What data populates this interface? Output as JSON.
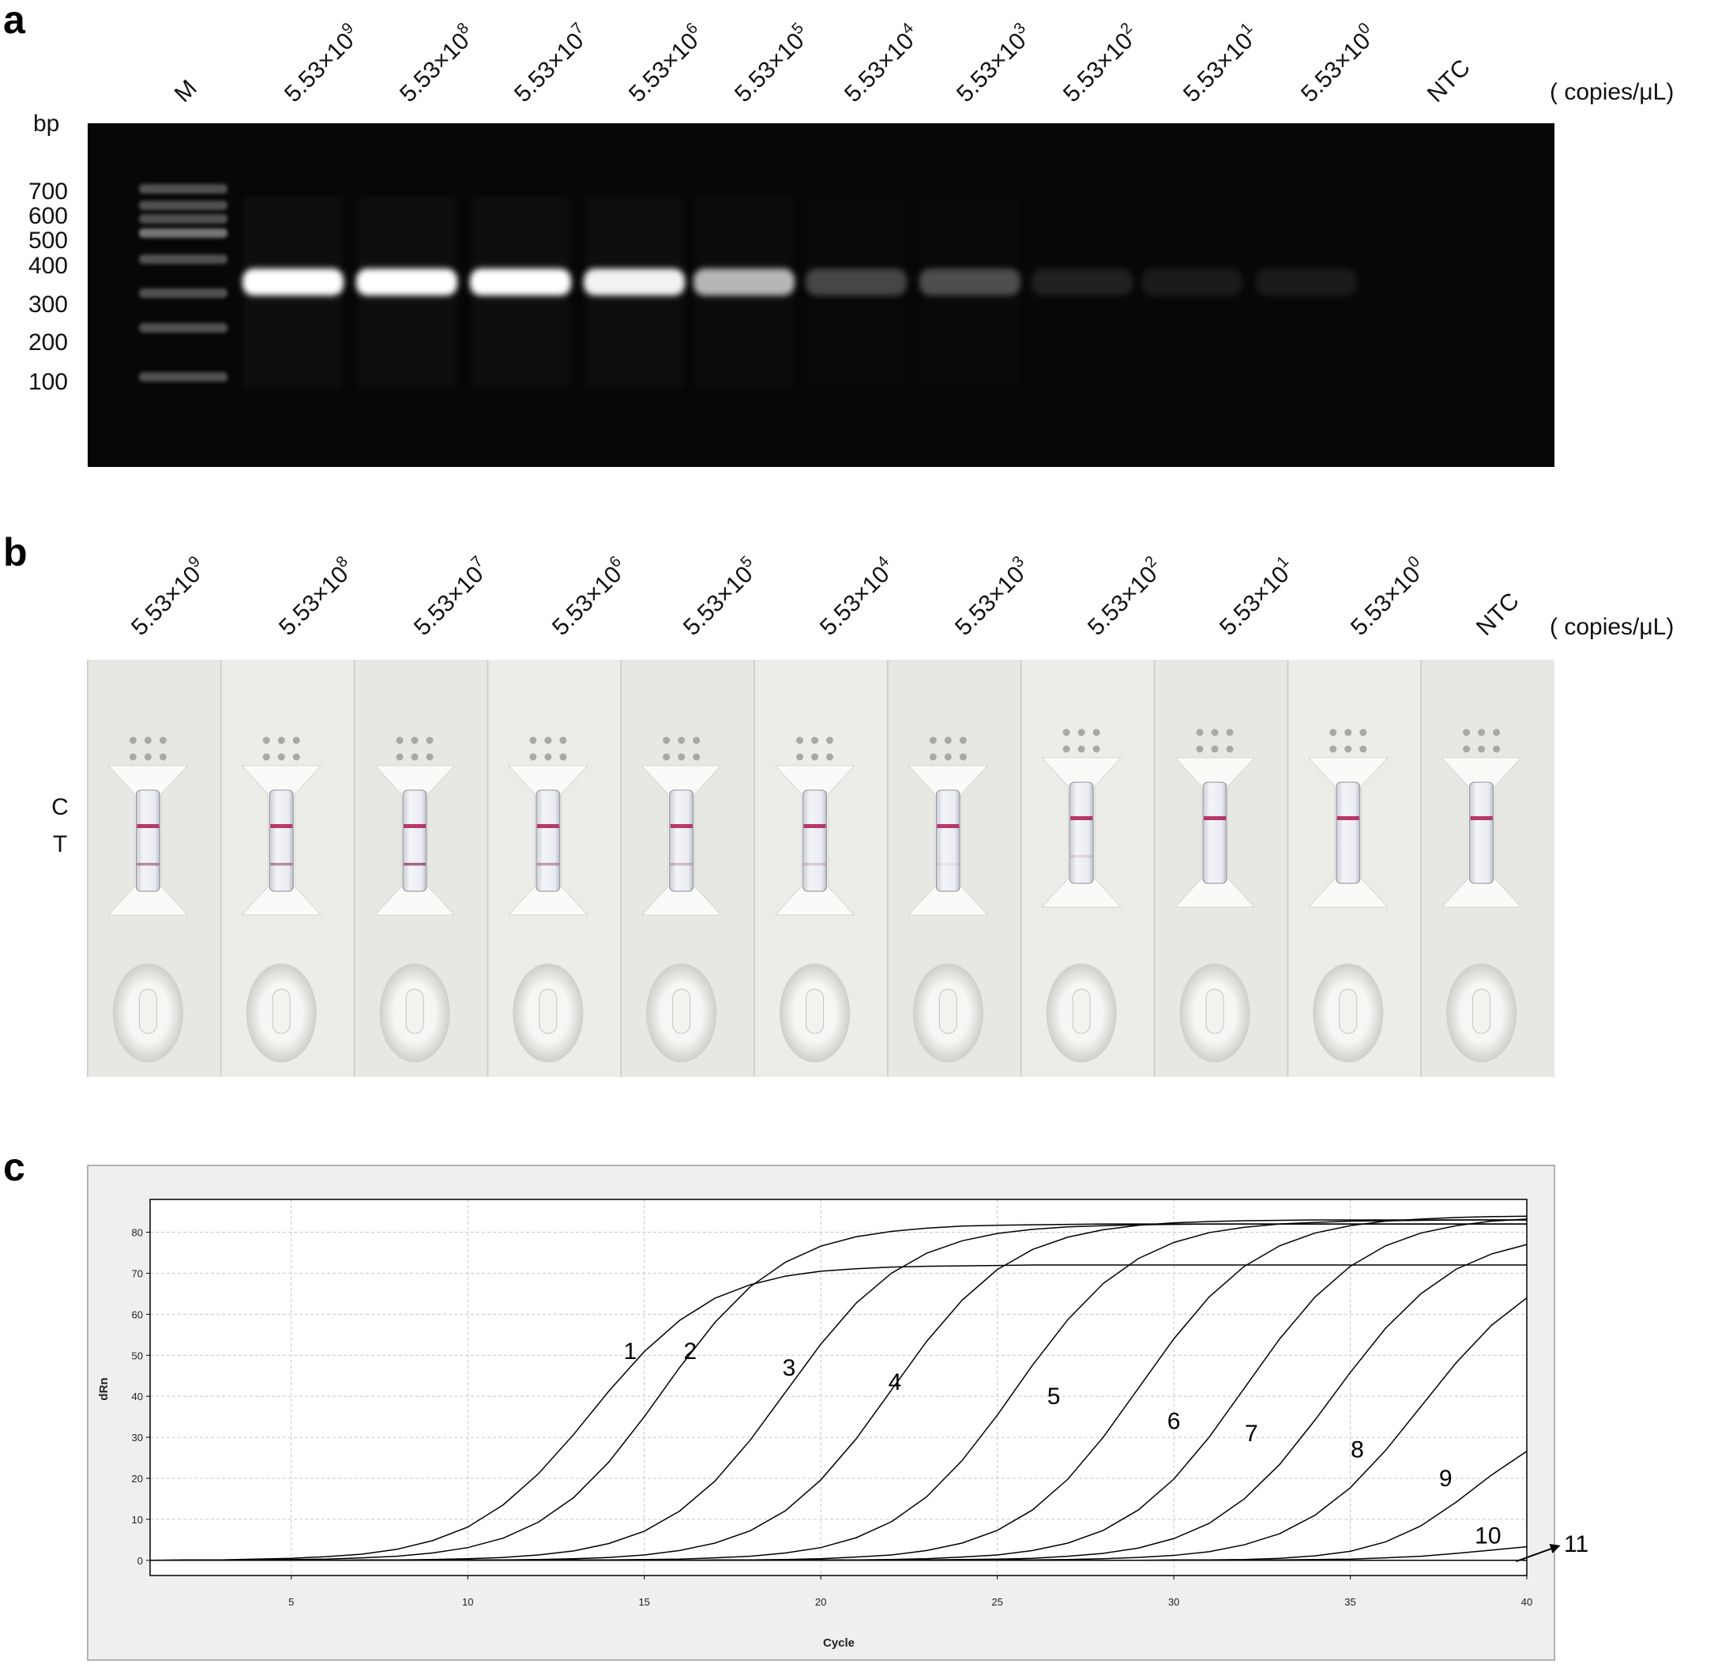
{
  "panel_labels": [
    "a",
    "b",
    "c"
  ],
  "gel": {
    "lanes": [
      {
        "text": "M"
      },
      {
        "text": "5.53×10",
        "sup": "9"
      },
      {
        "text": "5.53×10",
        "sup": "8"
      },
      {
        "text": "5.53×10",
        "sup": "7"
      },
      {
        "text": "5.53×10",
        "sup": "6"
      },
      {
        "text": "5.53×10",
        "sup": "5"
      },
      {
        "text": "5.53×10",
        "sup": "4"
      },
      {
        "text": "5.53×10",
        "sup": "3"
      },
      {
        "text": "5.53×10",
        "sup": "2"
      },
      {
        "text": "5.53×10",
        "sup": "1"
      },
      {
        "text": "5.53×10",
        "sup": "0"
      },
      {
        "text": "NTC"
      }
    ],
    "unit": "( copies/μL)",
    "size_unit": "bp",
    "marker_sizes": [
      700,
      600,
      500,
      400,
      300,
      200,
      100
    ]
  },
  "strips": {
    "lanes": [
      {
        "text": "5.53×10",
        "sup": "9"
      },
      {
        "text": "5.53×10",
        "sup": "8"
      },
      {
        "text": "5.53×10",
        "sup": "7"
      },
      {
        "text": "5.53×10",
        "sup": "6"
      },
      {
        "text": "5.53×10",
        "sup": "5"
      },
      {
        "text": "5.53×10",
        "sup": "4"
      },
      {
        "text": "5.53×10",
        "sup": "3"
      },
      {
        "text": "5.53×10",
        "sup": "2"
      },
      {
        "text": "5.53×10",
        "sup": "1"
      },
      {
        "text": "5.53×10",
        "sup": "0"
      },
      {
        "text": "NTC"
      }
    ],
    "unit": "( copies/μL)",
    "line_labels": [
      "C",
      "T"
    ]
  },
  "chart_data": {
    "type": "line",
    "xlabel": "Cycle",
    "ylabel": "dRn",
    "x": [
      1,
      2,
      3,
      4,
      5,
      6,
      7,
      8,
      9,
      10,
      11,
      12,
      13,
      14,
      15,
      16,
      17,
      18,
      19,
      20,
      21,
      22,
      23,
      24,
      25,
      26,
      27,
      28,
      29,
      30,
      31,
      32,
      33,
      34,
      35,
      36,
      37,
      38,
      39,
      40
    ],
    "xlim": [
      1,
      40
    ],
    "xticks": [
      5,
      10,
      15,
      20,
      25,
      30,
      35,
      40
    ],
    "ylim": [
      -3.7,
      88
    ],
    "yticks": [
      0,
      10,
      20,
      30,
      40,
      50,
      60,
      70,
      80
    ],
    "grid": true,
    "series": [
      {
        "color": "#000000",
        "values": [
          0,
          0.1,
          0.1,
          0.3,
          0.5,
          0.9,
          1.5,
          2.7,
          4.8,
          8.1,
          13.5,
          21.1,
          30.7,
          41.3,
          50.9,
          58.5,
          63.9,
          67.2,
          69.3,
          70.5,
          71.1,
          71.5,
          71.7,
          71.8,
          71.9,
          72,
          72,
          72,
          72,
          72,
          72,
          72,
          72,
          72,
          72,
          72,
          72,
          72,
          72,
          72
        ]
      },
      {
        "color": "#000000",
        "values": [
          0,
          0,
          0.1,
          0.1,
          0.2,
          0.3,
          0.6,
          1.0,
          1.8,
          3.1,
          5.4,
          9.3,
          15.3,
          24.0,
          35.0,
          47.0,
          58.0,
          66.7,
          72.7,
          76.6,
          78.9,
          80.2,
          81.0,
          81.5,
          81.7,
          81.8,
          81.9,
          82,
          82,
          82,
          82,
          82,
          82,
          82,
          82,
          82,
          82,
          82,
          82,
          82
        ]
      },
      {
        "color": "#000000",
        "values": [
          0,
          0,
          0,
          0,
          0,
          0,
          0.1,
          0.1,
          0.2,
          0.4,
          0.7,
          1.3,
          2.3,
          4.1,
          7.1,
          12.0,
          19.3,
          29.3,
          41.0,
          52.7,
          62.7,
          70.0,
          74.9,
          77.9,
          79.7,
          80.7,
          81.3,
          81.6,
          81.8,
          81.9,
          82,
          82,
          82,
          82,
          82,
          82,
          82,
          82,
          82,
          82
        ]
      },
      {
        "color": "#000000",
        "values": [
          0,
          0,
          0,
          0,
          0,
          0,
          0,
          0,
          0,
          0.1,
          0.1,
          0.2,
          0.4,
          0.7,
          1.3,
          2.4,
          4.2,
          7.2,
          12.1,
          19.6,
          29.6,
          41.5,
          53.4,
          63.4,
          70.9,
          75.8,
          78.8,
          80.6,
          81.7,
          82.3,
          82.6,
          82.8,
          82.9,
          83,
          83,
          83,
          83,
          83,
          83,
          83
        ]
      },
      {
        "color": "#000000",
        "values": [
          0,
          0,
          0,
          0,
          0,
          0,
          0,
          0,
          0,
          0,
          0,
          0,
          0.1,
          0.1,
          0.2,
          0.3,
          0.6,
          1.0,
          1.8,
          3.1,
          5.5,
          9.4,
          15.5,
          24.3,
          35.4,
          47.6,
          58.7,
          67.5,
          73.6,
          77.5,
          79.9,
          81.2,
          82.0,
          82.4,
          82.7,
          82.8,
          82.9,
          83,
          83,
          83
        ]
      },
      {
        "color": "#000000",
        "values": [
          0,
          0,
          0,
          0,
          0,
          0,
          0,
          0,
          0,
          0,
          0,
          0,
          0,
          0,
          0,
          0,
          0.1,
          0.1,
          0.2,
          0.4,
          0.8,
          1.3,
          2.4,
          4.2,
          7.3,
          12.3,
          19.8,
          30.0,
          42.0,
          54.0,
          64.2,
          71.7,
          76.7,
          79.8,
          81.6,
          82.7,
          83.2,
          83.6,
          83.8,
          83.9
        ]
      },
      {
        "color": "#000000",
        "values": [
          0,
          0,
          0,
          0,
          0,
          0,
          0,
          0,
          0,
          0,
          0,
          0,
          0,
          0,
          0,
          0,
          0,
          0,
          0,
          0.1,
          0.1,
          0.2,
          0.4,
          0.8,
          1.3,
          2.4,
          4.2,
          7.3,
          12.3,
          19.8,
          30.0,
          42.0,
          54.0,
          64.2,
          71.7,
          76.7,
          79.8,
          81.6,
          82.7,
          83.2
        ]
      },
      {
        "color": "#000000",
        "values": [
          0,
          0,
          0,
          0,
          0,
          0,
          0,
          0,
          0,
          0,
          0,
          0,
          0,
          0,
          0,
          0,
          0,
          0,
          0,
          0,
          0,
          0.1,
          0.1,
          0.2,
          0.3,
          0.5,
          1.0,
          1.7,
          3.0,
          5.3,
          9.0,
          15.0,
          23.4,
          34.2,
          45.8,
          56.6,
          65.0,
          71.0,
          74.7,
          77.0
        ]
      },
      {
        "color": "#000000",
        "values": [
          0,
          0,
          0,
          0,
          0,
          0,
          0,
          0,
          0,
          0,
          0,
          0,
          0,
          0,
          0,
          0,
          0,
          0,
          0,
          0,
          0,
          0,
          0,
          0,
          0.1,
          0.1,
          0.2,
          0.4,
          0.7,
          1.2,
          2.1,
          3.8,
          6.5,
          11.0,
          17.7,
          26.8,
          37.5,
          48.2,
          57.3,
          64.0
        ]
      },
      {
        "color": "#000000",
        "values": [
          0,
          0,
          0,
          0,
          0,
          0,
          0,
          0,
          0,
          0,
          0,
          0,
          0,
          0,
          0,
          0,
          0,
          0,
          0,
          0,
          0,
          0,
          0,
          0,
          0,
          0,
          0,
          0,
          0,
          0.1,
          0.1,
          0.2,
          0.5,
          1.1,
          2.2,
          4.5,
          8.4,
          14.2,
          20.8,
          26.6
        ]
      },
      {
        "color": "#000000",
        "values": [
          0,
          0,
          0,
          0,
          0,
          0,
          0,
          0,
          0,
          0,
          0,
          0,
          0,
          0,
          0,
          0,
          0,
          0,
          0,
          0,
          0,
          0,
          0,
          0,
          0,
          0,
          0,
          0,
          0,
          0,
          0,
          0,
          0.1,
          0.2,
          0.3,
          0.6,
          1.0,
          1.7,
          2.5,
          3.3
        ]
      },
      {
        "color": "#000000",
        "values": [
          0,
          0,
          0,
          0,
          0,
          0,
          0,
          0,
          0,
          0,
          0,
          0,
          0,
          0,
          0,
          0,
          0,
          0,
          0,
          0,
          0,
          0,
          0,
          0,
          0,
          0,
          0,
          0,
          0,
          0,
          0,
          0,
          0,
          0,
          0,
          0,
          0,
          0,
          0,
          0
        ]
      }
    ],
    "annotations": [
      {
        "text": "1",
        "x": 14.6,
        "y": 51
      },
      {
        "text": "2",
        "x": 16.3,
        "y": 51
      },
      {
        "text": "3",
        "x": 19.1,
        "y": 47
      },
      {
        "text": "4",
        "x": 22.1,
        "y": 43.5
      },
      {
        "text": "5",
        "x": 26.6,
        "y": 40
      },
      {
        "text": "6",
        "x": 30.0,
        "y": 34
      },
      {
        "text": "7",
        "x": 32.2,
        "y": 31
      },
      {
        "text": "8",
        "x": 35.2,
        "y": 27
      },
      {
        "text": "9",
        "x": 37.7,
        "y": 20
      },
      {
        "text": "10",
        "x": 38.9,
        "y": 6
      },
      {
        "text": "11",
        "x": 41.4,
        "y": 4
      }
    ]
  }
}
